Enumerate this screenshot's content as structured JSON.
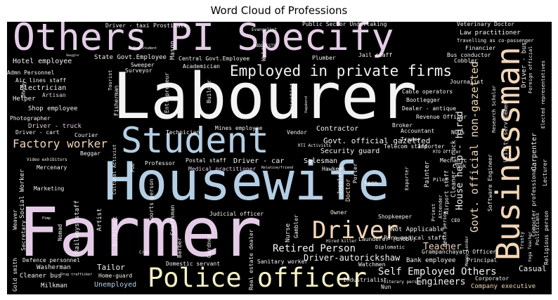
{
  "title": "Word Cloud of Professions",
  "colors": {
    "white": "#f4f4f4",
    "pink": "#e4cce6",
    "blue": "#b4cee4",
    "cream": "#f6f0c6",
    "peach": "#f2d6b8",
    "lavender": "#cfc3e0"
  },
  "words": [
    {
      "text": "Others PI Specify",
      "color": "pink"
    },
    {
      "text": "Labourer",
      "color": "white"
    },
    {
      "text": "Housewife",
      "color": "blue"
    },
    {
      "text": "Farmer",
      "color": "pink"
    },
    {
      "text": "Student",
      "color": "blue"
    },
    {
      "text": "Businessman",
      "color": "peach"
    },
    {
      "text": "Police officer",
      "color": "cream"
    },
    {
      "text": "Driver",
      "color": "peach"
    },
    {
      "text": "Employed in private firms",
      "color": "white"
    },
    {
      "text": "Factory worker",
      "color": "peach"
    },
    {
      "text": "Retired Person",
      "color": "white"
    },
    {
      "text": "Self Employed Others",
      "color": "white"
    },
    {
      "text": "Govt. official non-gazetted",
      "color": "peach"
    },
    {
      "text": "Govt. official gazetted",
      "color": "white"
    },
    {
      "text": "House help - hired",
      "color": "white"
    },
    {
      "text": "Teacher",
      "color": "peach"
    },
    {
      "text": "Engineers",
      "color": "white"
    },
    {
      "text": "Driver-autorickshaw",
      "color": "white"
    },
    {
      "text": "Tailor",
      "color": "white"
    },
    {
      "text": "Casual",
      "color": "white"
    },
    {
      "text": "Unemployed",
      "color": "blue"
    },
    {
      "text": "Driver - car",
      "color": "white"
    },
    {
      "text": "Contractor",
      "color": "white"
    },
    {
      "text": "Security guard",
      "color": "white"
    },
    {
      "text": "Salesman",
      "color": "white"
    },
    {
      "text": "Electrician",
      "color": "white"
    },
    {
      "text": "Hotel employee",
      "color": "white"
    },
    {
      "text": "Helper",
      "color": "white"
    },
    {
      "text": "Shop employee",
      "color": "white"
    },
    {
      "text": "Driver - truck",
      "color": "pink"
    },
    {
      "text": "Driver - cart",
      "color": "white"
    },
    {
      "text": "Courier",
      "color": "white"
    },
    {
      "text": "Beggar",
      "color": "white"
    },
    {
      "text": "Mercenary",
      "color": "white"
    },
    {
      "text": "Marketing",
      "color": "white"
    },
    {
      "text": "Washerman",
      "color": "white"
    },
    {
      "text": "Cleaner bus",
      "color": "white"
    },
    {
      "text": "Milkman",
      "color": "white"
    },
    {
      "text": "Defence personnel",
      "color": "white"
    },
    {
      "text": "Home-guard",
      "color": "white"
    },
    {
      "text": "Domestic servant",
      "color": "white"
    },
    {
      "text": "Sanitary worker",
      "color": "white"
    },
    {
      "text": "Bank employee",
      "color": "white"
    },
    {
      "text": "Company executive",
      "color": "peach"
    },
    {
      "text": "Corporator",
      "color": "white"
    },
    {
      "text": "Principal",
      "color": "white"
    },
    {
      "text": "Grampanchayath Officer",
      "color": "white"
    },
    {
      "text": "Para medical staff",
      "color": "white"
    },
    {
      "text": "Launderer (dhobl)",
      "color": "white"
    },
    {
      "text": "Not Applicable",
      "color": "white"
    },
    {
      "text": "Shopkeeper",
      "color": "white"
    },
    {
      "text": "Mechanic",
      "color": "white"
    },
    {
      "text": "Cook",
      "color": "white"
    },
    {
      "text": "Accountant",
      "color": "white"
    },
    {
      "text": "Trader",
      "color": "white"
    },
    {
      "text": "Telecom staff",
      "color": "white"
    },
    {
      "text": "Broker",
      "color": "white"
    },
    {
      "text": "Importer",
      "color": "white"
    },
    {
      "text": "Vendor",
      "color": "white"
    },
    {
      "text": "Technician",
      "color": "white"
    },
    {
      "text": "Mines employee",
      "color": "white"
    },
    {
      "text": "Postal staff",
      "color": "white"
    },
    {
      "text": "Professor",
      "color": "white"
    },
    {
      "text": "Medical practitioner",
      "color": "pink"
    },
    {
      "text": "Hawkers",
      "color": "white"
    },
    {
      "text": "Doctor",
      "color": "peach"
    },
    {
      "text": "Peon",
      "color": "white"
    },
    {
      "text": "Nurse",
      "color": "white"
    },
    {
      "text": "Judicial officer",
      "color": "white"
    },
    {
      "text": "Owner",
      "color": "white"
    },
    {
      "text": "Watchmen",
      "color": "white"
    },
    {
      "text": "Industrialist",
      "color": "white"
    },
    {
      "text": "Nun",
      "color": "white"
    },
    {
      "text": "Diplomatic",
      "color": "white"
    },
    {
      "text": "Literary person",
      "color": "white"
    },
    {
      "text": "Hired killer",
      "color": "white"
    },
    {
      "text": "Driver - taxi",
      "color": "white"
    },
    {
      "text": "Prostitute",
      "color": "white"
    },
    {
      "text": "Evangelist",
      "color": "white"
    },
    {
      "text": "Public Sector Undertaking",
      "color": "white"
    },
    {
      "text": "Veterinary Doctor",
      "color": "white"
    },
    {
      "text": "Law practitioner",
      "color": "white"
    },
    {
      "text": "Travelling as co-passenger",
      "color": "white"
    },
    {
      "text": "Financier",
      "color": "white"
    },
    {
      "text": "Bus conductor",
      "color": "white"
    },
    {
      "text": "Cobbler",
      "color": "white"
    },
    {
      "text": "Jail staff",
      "color": "white"
    },
    {
      "text": "Plumber",
      "color": "white"
    },
    {
      "text": "BUDDHISTS",
      "color": "white"
    },
    {
      "text": "State Govt.Employee",
      "color": "white"
    },
    {
      "text": "Central Govt.Employee",
      "color": "white"
    },
    {
      "text": "Sweeper",
      "color": "white"
    },
    {
      "text": "Surveyor",
      "color": "white"
    },
    {
      "text": "Academician",
      "color": "white"
    },
    {
      "text": "Admn Personnel",
      "color": "white"
    },
    {
      "text": "Air lines staff",
      "color": "white"
    },
    {
      "text": "Artisan",
      "color": "pink"
    },
    {
      "text": "Photographer",
      "color": "white"
    },
    {
      "text": "Cable operators",
      "color": "white"
    },
    {
      "text": "Bootlegger",
      "color": "white"
    },
    {
      "text": "Dealer - antique",
      "color": "white"
    },
    {
      "text": "Revenue Officer",
      "color": "white"
    },
    {
      "text": "Journalist",
      "color": "white"
    },
    {
      "text": "NGOs",
      "color": "white"
    },
    {
      "text": "RTO Officer",
      "color": "white"
    },
    {
      "text": "Pilot",
      "color": "white"
    },
    {
      "text": "Airport staff",
      "color": "white"
    },
    {
      "text": "Exporter",
      "color": "white"
    },
    {
      "text": "CEO",
      "color": "white"
    },
    {
      "text": "Money Lender",
      "color": "white"
    },
    {
      "text": "Trusty",
      "color": "white"
    },
    {
      "text": "Yoga Teacher",
      "color": "white"
    },
    {
      "text": "Religious person",
      "color": "white"
    },
    {
      "text": "Politicians",
      "color": "white"
    },
    {
      "text": "Computer professional",
      "color": "white"
    },
    {
      "text": "Lecturer",
      "color": "white"
    },
    {
      "text": "Carpenter",
      "color": "white"
    },
    {
      "text": "Driver - bus",
      "color": "white"
    },
    {
      "text": "Foreign official",
      "color": "white"
    },
    {
      "text": "Elected representatives",
      "color": "white"
    },
    {
      "text": "Research Scholar",
      "color": "white"
    },
    {
      "text": "Utility servicemen",
      "color": "white"
    },
    {
      "text": "Software Engineer",
      "color": "white"
    },
    {
      "text": "Cleaner - truck",
      "color": "white"
    },
    {
      "text": "Attender",
      "color": "white"
    },
    {
      "text": "Media person",
      "color": "white"
    },
    {
      "text": "Priest",
      "color": "white"
    },
    {
      "text": "Painter",
      "color": "white"
    },
    {
      "text": "Social Worker",
      "color": "white"
    },
    {
      "text": "Railways staff",
      "color": "white"
    },
    {
      "text": "Nomad",
      "color": "white"
    },
    {
      "text": "Secretary",
      "color": "white"
    },
    {
      "text": "Weaver",
      "color": "white"
    },
    {
      "text": "Gold smith",
      "color": "white"
    },
    {
      "text": "Artist",
      "color": "white"
    },
    {
      "text": "Architect",
      "color": "white"
    },
    {
      "text": "Sports person",
      "color": "white"
    },
    {
      "text": "Craftsman",
      "color": "white"
    },
    {
      "text": "Barber",
      "color": "white"
    },
    {
      "text": "Gardner",
      "color": "white"
    },
    {
      "text": "Real estate dealer",
      "color": "white"
    },
    {
      "text": "Gambler",
      "color": "white"
    },
    {
      "text": "Jugglers",
      "color": "white"
    },
    {
      "text": "Porter",
      "color": "white"
    },
    {
      "text": "Fisherman",
      "color": "white"
    },
    {
      "text": "Entrepreneur",
      "color": "white"
    },
    {
      "text": "Mason",
      "color": "white"
    },
    {
      "text": "Builder",
      "color": "white"
    },
    {
      "text": "Scientist",
      "color": "white"
    },
    {
      "text": "Welder",
      "color": "white"
    },
    {
      "text": "Cultural Activist",
      "color": "white"
    },
    {
      "text": "PDO",
      "color": "white"
    },
    {
      "text": "Dhoby",
      "color": "white"
    },
    {
      "text": "Tourist",
      "color": "white"
    },
    {
      "text": "Video exhibitors",
      "color": "white"
    },
    {
      "text": "Crew",
      "color": "white"
    },
    {
      "text": "Drug trafficker",
      "color": "white"
    },
    {
      "text": "Vagabond",
      "color": "white"
    },
    {
      "text": "RTI Activists",
      "color": "white"
    },
    {
      "text": "Relative/friend",
      "color": "white"
    },
    {
      "text": "Dog Student",
      "color": "white"
    },
    {
      "text": "Smuggler",
      "color": "white"
    },
    {
      "text": "Pimp",
      "color": "white"
    }
  ]
}
